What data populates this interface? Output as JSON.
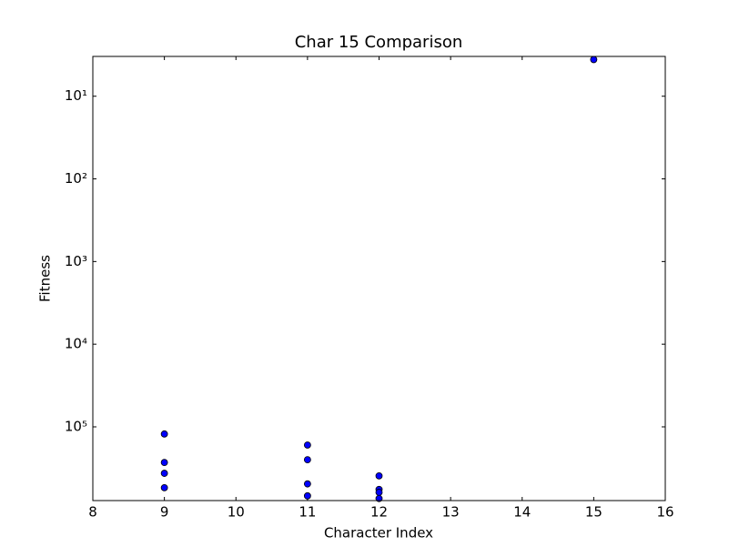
{
  "chart_data": {
    "type": "scatter",
    "title": "Char 15 Comparison",
    "x_label": "Character Index",
    "y_label": "Fitness",
    "x": [
      9,
      9,
      9,
      9,
      11,
      11,
      11,
      11,
      12,
      12,
      12,
      12,
      15
    ],
    "values": [
      122000,
      270000,
      365000,
      545000,
      166000,
      250000,
      490000,
      684000,
      392000,
      572000,
      620000,
      737000,
      3.6
    ],
    "color": "#0000ff",
    "xlim": [
      8,
      16
    ],
    "xticks": [
      8,
      9,
      10,
      11,
      12,
      13,
      14,
      15,
      16
    ],
    "ylim": [
      780000,
      3.3
    ],
    "y_scale": "log",
    "yticks": [
      {
        "value": 10,
        "label": "10¹"
      },
      {
        "value": 100,
        "label": "10²"
      },
      {
        "value": 1000,
        "label": "10³"
      },
      {
        "value": 10000,
        "label": "10⁴"
      },
      {
        "value": 100000,
        "label": "10⁵"
      }
    ],
    "grid": false
  }
}
